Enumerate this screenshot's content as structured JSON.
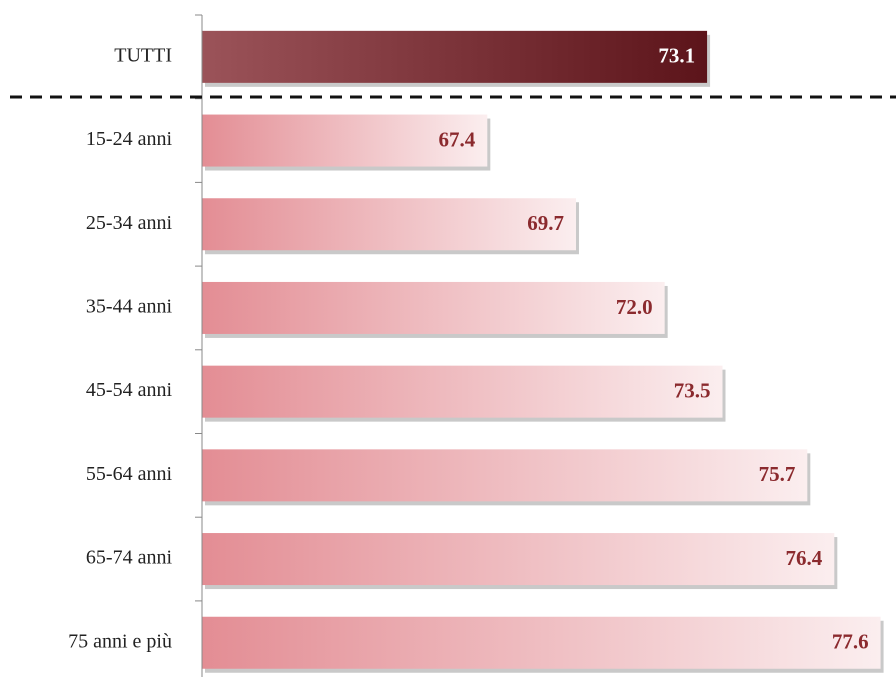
{
  "chart_data": {
    "type": "bar",
    "orientation": "horizontal",
    "categories": [
      "TUTTI",
      "15-24 anni",
      "25-34 anni",
      "35-44 anni",
      "45-54 anni",
      "55-64 anni",
      "65-74 anni",
      "75 anni e più"
    ],
    "values": [
      73.1,
      67.4,
      69.7,
      72.0,
      73.5,
      75.7,
      76.4,
      77.6
    ],
    "value_labels": [
      "73.1",
      "67.4",
      "69.7",
      "72.0",
      "73.5",
      "75.7",
      "76.4",
      "77.6"
    ],
    "colors": [
      "#7a1a22",
      "#e38d94",
      "#e38d94",
      "#e38d94",
      "#e38d94",
      "#e38d94",
      "#e38d94",
      "#e38d94"
    ],
    "label_colors": [
      "#ffffff",
      "#8b2a2e",
      "#8b2a2e",
      "#8b2a2e",
      "#8b2a2e",
      "#8b2a2e",
      "#8b2a2e",
      "#8b2a2e"
    ],
    "xlim": [
      60,
      78
    ]
  }
}
